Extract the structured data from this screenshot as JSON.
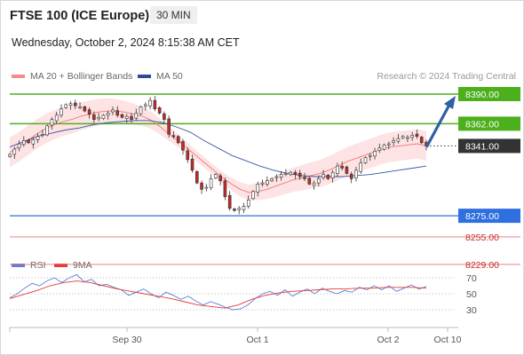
{
  "header": {
    "title": "FTSE 100 (ICE Europe)",
    "timeframe": "30 MIN",
    "datetime": "Wednesday, October 2, 2024 8:15:38 AM CET"
  },
  "legend": {
    "ma20_bb": "MA 20 + Bollinger Bands",
    "ma50": "MA 50",
    "copyright": "Research © 2024 Trading Central"
  },
  "rsi_legend": {
    "rsi": "RSI",
    "ma9": "9MA"
  },
  "colors": {
    "bull": "#2e7d32",
    "bear": "#c62828",
    "ma20": "#f07878",
    "bb_fill": "#fde0e0",
    "ma50": "#3a55a4",
    "rsi": "#5b7fd6",
    "rsi_ma": "#e53935",
    "green_level": "#4caf1c",
    "blue_level": "#2f6fe0",
    "red_level": "#e57373",
    "price_tag": "#333333"
  },
  "chart_data": {
    "type": "candlestick",
    "x_ticks": [
      "Sep 30",
      "Oct 1",
      "Oct 2",
      "Oct 10"
    ],
    "price_range": [
      8210,
      8402
    ],
    "levels": [
      {
        "value": 8390.0,
        "label": "8390.00",
        "kind": "resistance"
      },
      {
        "value": 8362.0,
        "label": "8362.00",
        "kind": "resistance"
      },
      {
        "value": 8341.0,
        "label": "8341.00",
        "kind": "last"
      },
      {
        "value": 8275.0,
        "label": "8275.00",
        "kind": "support"
      },
      {
        "value": 8255.0,
        "label": "8255.00",
        "kind": "minor"
      },
      {
        "value": 8229.0,
        "label": "8229.00",
        "kind": "minor"
      }
    ],
    "price_series": [
      8333,
      8338,
      8343,
      8346,
      8344,
      8347,
      8350,
      8352,
      8360,
      8366,
      8370,
      8376,
      8380,
      8381,
      8379,
      8378,
      8374,
      8371,
      8366,
      8368,
      8370,
      8372,
      8375,
      8370,
      8368,
      8369,
      8366,
      8372,
      8378,
      8380,
      8384,
      8376,
      8372,
      8366,
      8352,
      8350,
      8344,
      8337,
      8328,
      8318,
      8306,
      8300,
      8302,
      8310,
      8314,
      8308,
      8293,
      8282,
      8280,
      8282,
      8284,
      8290,
      8298,
      8305,
      8306,
      8308,
      8310,
      8312,
      8314,
      8315,
      8316,
      8314,
      8312,
      8310,
      8305,
      8306,
      8310,
      8314,
      8310,
      8316,
      8322,
      8320,
      8315,
      8310,
      8318,
      8325,
      8330,
      8332,
      8336,
      8339,
      8342,
      8343,
      8346,
      8348,
      8350,
      8349,
      8351,
      8350,
      8344,
      8341
    ],
    "ma20": [
      8335,
      8340,
      8346,
      8352,
      8357,
      8361,
      8364,
      8366,
      8369,
      8371,
      8373,
      8374,
      8374,
      8373,
      8371,
      8369,
      8365,
      8359,
      8352,
      8346,
      8339,
      8332,
      8325,
      8318,
      8311,
      8305,
      8300,
      8297,
      8298,
      8300,
      8303,
      8306,
      8309,
      8311,
      8313,
      8315,
      8318,
      8322,
      8326,
      8329,
      8332,
      8335,
      8338,
      8340,
      8341,
      8342,
      8343,
      8341
    ],
    "ma50": [
      8340,
      8345,
      8350,
      8353,
      8356,
      8358,
      8361,
      8363,
      8364,
      8365,
      8365,
      8363,
      8359,
      8354,
      8346,
      8339,
      8332,
      8327,
      8322,
      8318,
      8315,
      8313,
      8312,
      8312,
      8312,
      8313,
      8314,
      8316,
      8318,
      8320,
      8322
    ],
    "forecast_arrow": {
      "from": 8341,
      "to": 8390
    },
    "rsi": {
      "ticks": [
        70,
        50,
        30
      ],
      "range": [
        20,
        80
      ],
      "rsi_values": [
        45,
        50,
        57,
        63,
        60,
        66,
        70,
        64,
        70,
        74,
        65,
        68,
        60,
        62,
        58,
        55,
        48,
        52,
        56,
        50,
        45,
        52,
        48,
        43,
        47,
        41,
        36,
        40,
        37,
        33,
        30,
        31,
        36,
        44,
        50,
        53,
        48,
        55,
        47,
        52,
        56,
        50,
        57,
        53,
        50,
        54,
        52,
        58,
        55,
        60,
        55,
        60,
        53,
        57,
        61,
        56,
        59
      ],
      "ma9_values": [
        44,
        49,
        54,
        60,
        64,
        66,
        64,
        60,
        56,
        53,
        50,
        47,
        44,
        40,
        36,
        34,
        32,
        36,
        43,
        48,
        51,
        53,
        54,
        55,
        56,
        56,
        57,
        57,
        58,
        58,
        58,
        57
      ]
    }
  }
}
